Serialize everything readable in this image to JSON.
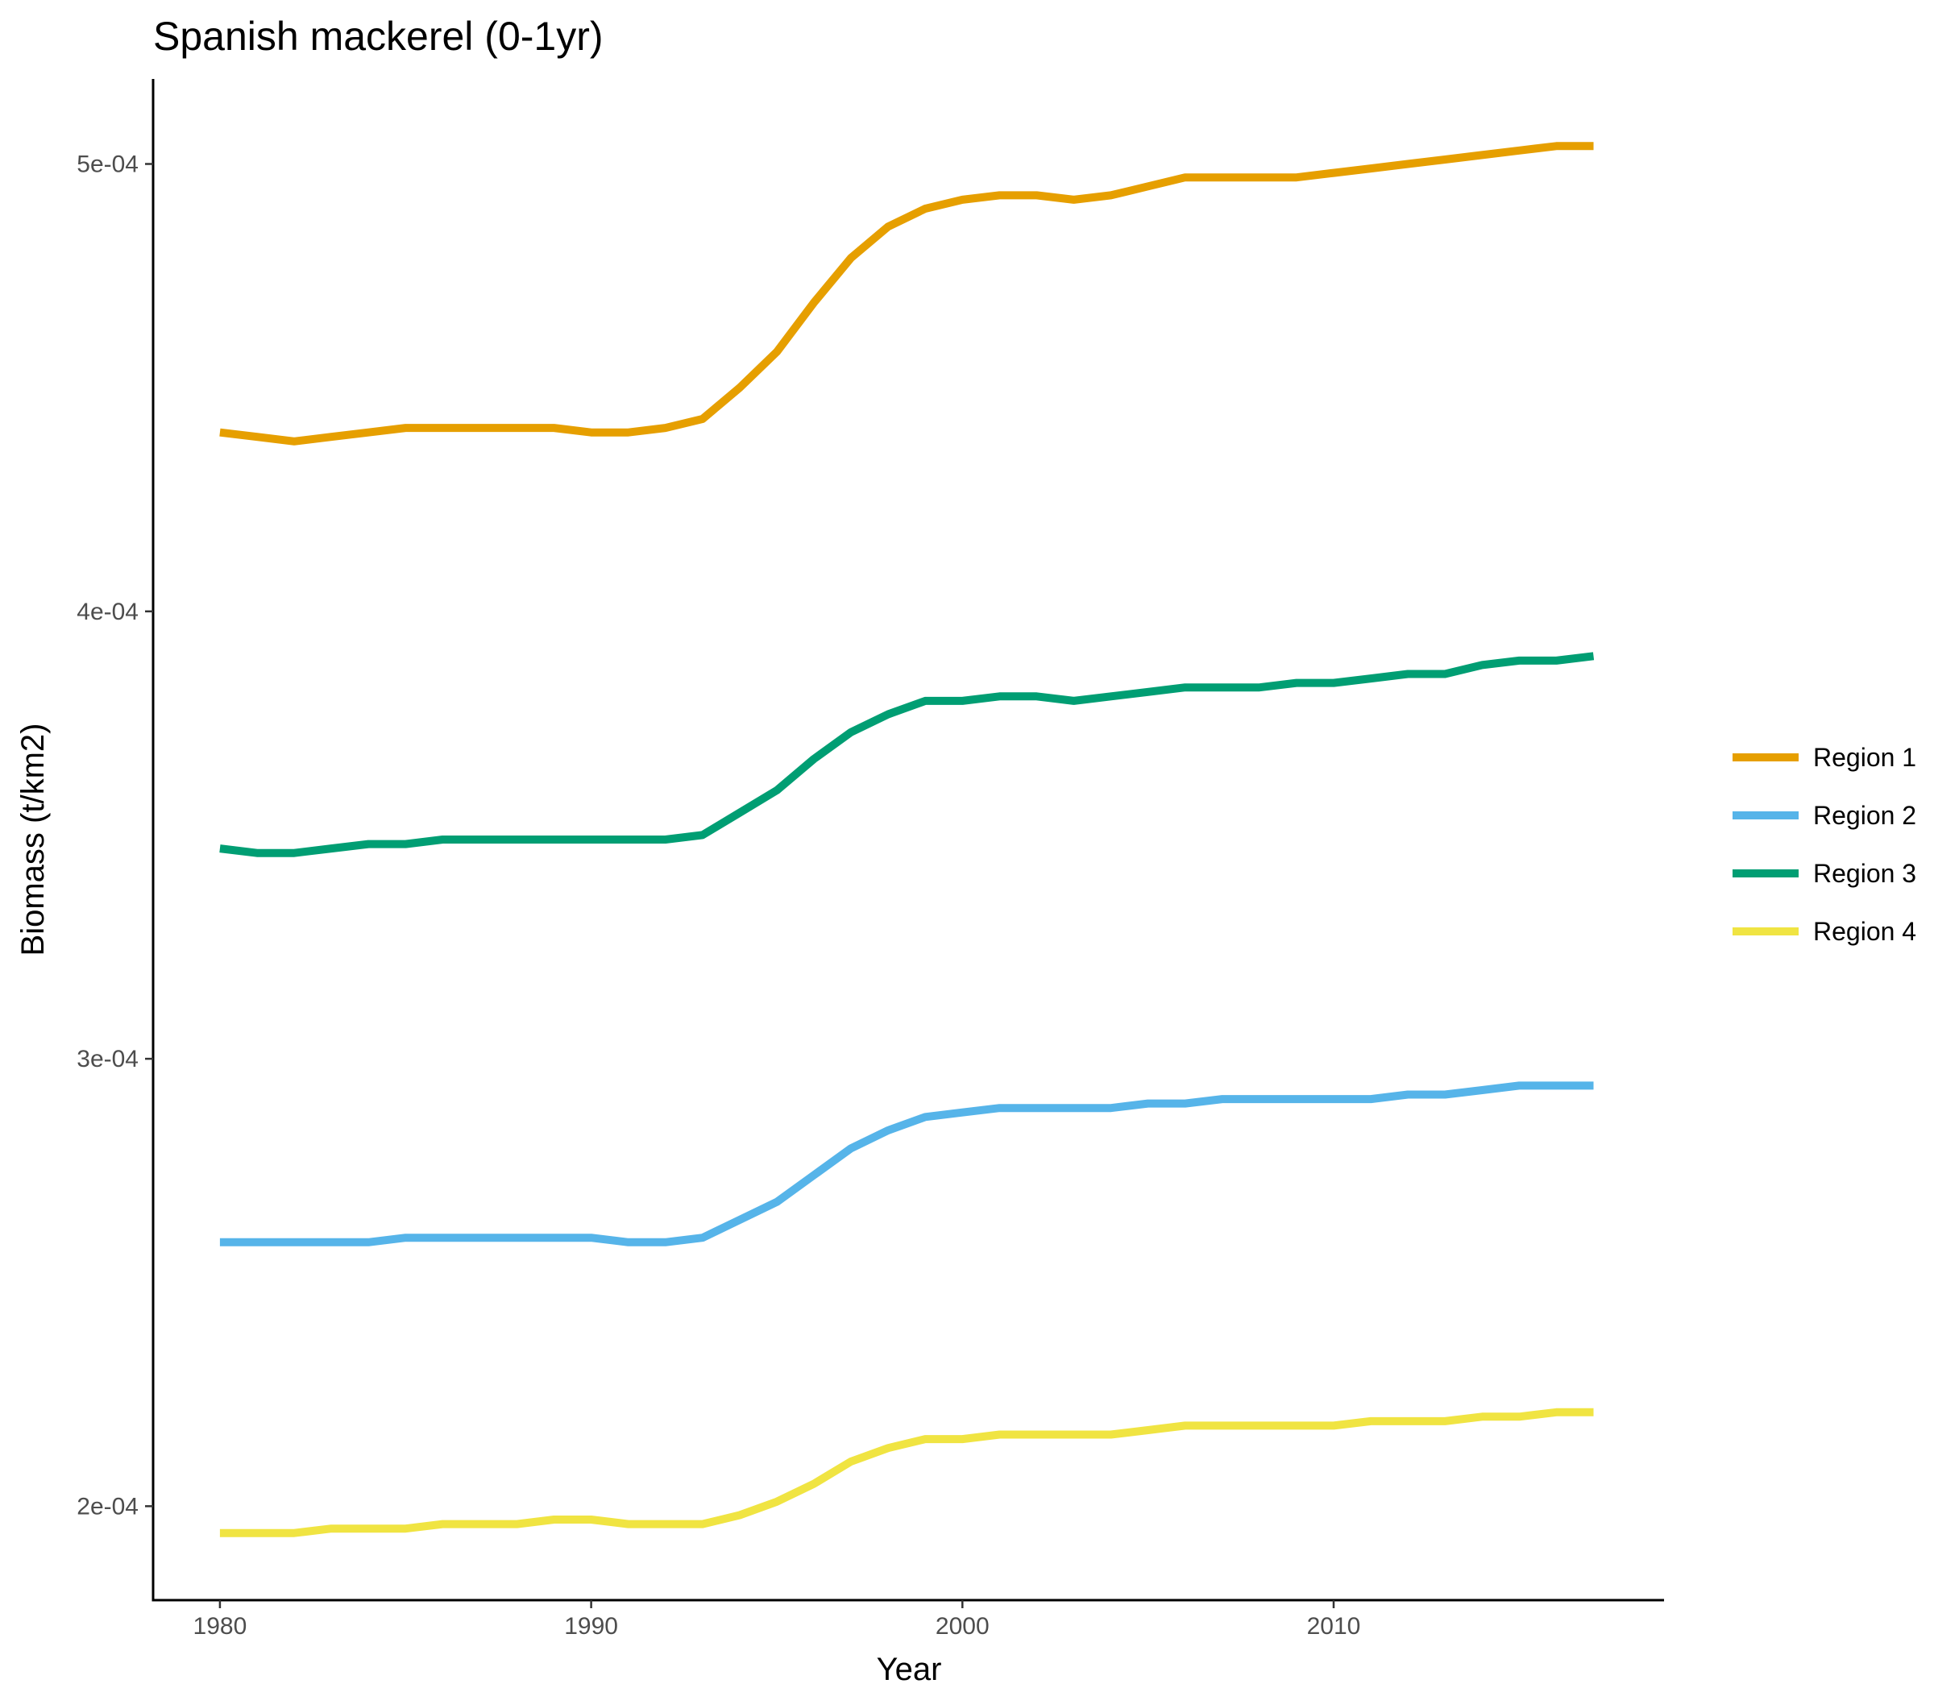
{
  "chart_data": {
    "type": "line",
    "title": "Spanish mackerel (0-1yr)",
    "xlabel": "Year",
    "ylabel": "Biomass (t/km2)",
    "xlim": [
      1978.2,
      2018.9
    ],
    "ylim": [
      0.000179,
      0.000519
    ],
    "x_ticks": [
      1980,
      1990,
      2000,
      2010
    ],
    "x_tick_labels": [
      "1980",
      "1990",
      "2000",
      "2010"
    ],
    "y_ticks": [
      0.0002,
      0.0003,
      0.0004,
      0.0005
    ],
    "y_tick_labels": [
      "2e-04",
      "3e-04",
      "4e-04",
      "5e-04"
    ],
    "grid": false,
    "legend_position": "right",
    "x": [
      1980,
      1981,
      1982,
      1983,
      1984,
      1985,
      1986,
      1987,
      1988,
      1989,
      1990,
      1991,
      1992,
      1993,
      1994,
      1995,
      1996,
      1997,
      1998,
      1999,
      2000,
      2001,
      2002,
      2003,
      2004,
      2005,
      2006,
      2007,
      2008,
      2009,
      2010,
      2011,
      2012,
      2013,
      2014,
      2015,
      2016,
      2017
    ],
    "series": [
      {
        "name": "Region 1",
        "color": "#E69F00",
        "values": [
          0.00044,
          0.000439,
          0.000438,
          0.000439,
          0.00044,
          0.000441,
          0.000441,
          0.000441,
          0.000441,
          0.000441,
          0.00044,
          0.00044,
          0.000441,
          0.000443,
          0.00045,
          0.000458,
          0.000469,
          0.000479,
          0.000486,
          0.00049,
          0.000492,
          0.000493,
          0.000493,
          0.000492,
          0.000493,
          0.000495,
          0.000497,
          0.000497,
          0.000497,
          0.000497,
          0.000498,
          0.000499,
          0.0005,
          0.000501,
          0.000502,
          0.000503,
          0.000504,
          0.000504
        ]
      },
      {
        "name": "Region 2",
        "color": "#56B4E9",
        "values": [
          0.000259,
          0.000259,
          0.000259,
          0.000259,
          0.000259,
          0.00026,
          0.00026,
          0.00026,
          0.00026,
          0.00026,
          0.00026,
          0.000259,
          0.000259,
          0.00026,
          0.000264,
          0.000268,
          0.000274,
          0.00028,
          0.000284,
          0.000287,
          0.000288,
          0.000289,
          0.000289,
          0.000289,
          0.000289,
          0.00029,
          0.00029,
          0.000291,
          0.000291,
          0.000291,
          0.000291,
          0.000291,
          0.000292,
          0.000292,
          0.000293,
          0.000294,
          0.000294,
          0.000294
        ]
      },
      {
        "name": "Region 3",
        "color": "#009E73",
        "values": [
          0.000347,
          0.000346,
          0.000346,
          0.000347,
          0.000348,
          0.000348,
          0.000349,
          0.000349,
          0.000349,
          0.000349,
          0.000349,
          0.000349,
          0.000349,
          0.00035,
          0.000355,
          0.00036,
          0.000367,
          0.000373,
          0.000377,
          0.00038,
          0.00038,
          0.000381,
          0.000381,
          0.00038,
          0.000381,
          0.000382,
          0.000383,
          0.000383,
          0.000383,
          0.000384,
          0.000384,
          0.000385,
          0.000386,
          0.000386,
          0.000388,
          0.000389,
          0.000389,
          0.00039
        ]
      },
      {
        "name": "Region 4",
        "color": "#F0E442",
        "values": [
          0.000194,
          0.000194,
          0.000194,
          0.000195,
          0.000195,
          0.000195,
          0.000196,
          0.000196,
          0.000196,
          0.000197,
          0.000197,
          0.000196,
          0.000196,
          0.000196,
          0.000198,
          0.000201,
          0.000205,
          0.00021,
          0.000213,
          0.000215,
          0.000215,
          0.000216,
          0.000216,
          0.000216,
          0.000216,
          0.000217,
          0.000218,
          0.000218,
          0.000218,
          0.000218,
          0.000218,
          0.000219,
          0.000219,
          0.000219,
          0.00022,
          0.00022,
          0.000221,
          0.000221
        ]
      }
    ]
  }
}
